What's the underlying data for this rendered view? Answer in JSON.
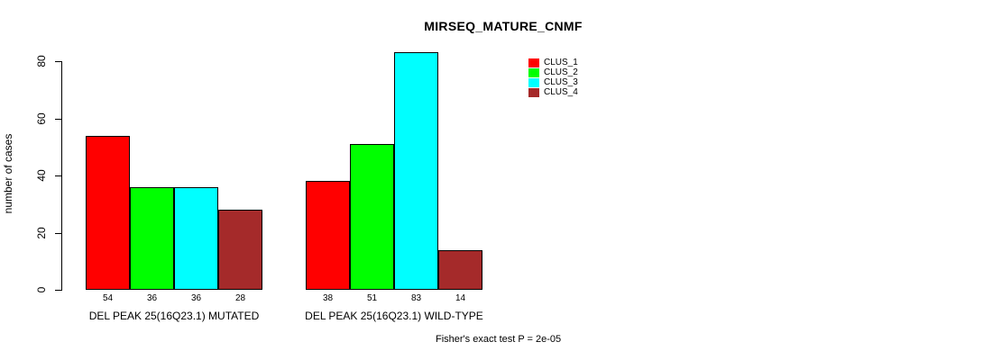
{
  "title": "MIRSEQ_MATURE_CNMF",
  "footer": "Fisher's exact test P = 2e-05",
  "chart_data": {
    "type": "bar",
    "title": "MIRSEQ_MATURE_CNMF",
    "xlabel": "",
    "ylabel": "number of cases",
    "yticks": [
      0,
      20,
      40,
      60,
      80
    ],
    "ylim": [
      0,
      83
    ],
    "grid": false,
    "legend_position": "top-right-inside",
    "categories": [
      "DEL PEAK 25(16Q23.1) MUTATED",
      "DEL PEAK 25(16Q23.1) WILD-TYPE"
    ],
    "series": [
      {
        "name": "CLUS_1",
        "color": "#FF0000",
        "values": [
          54,
          38
        ]
      },
      {
        "name": "CLUS_2",
        "color": "#00FF00",
        "values": [
          36,
          51
        ]
      },
      {
        "name": "CLUS_3",
        "color": "#00FFFF",
        "values": [
          36,
          83
        ]
      },
      {
        "name": "CLUS_4",
        "color": "#A52A2A",
        "values": [
          28,
          14
        ]
      }
    ],
    "bar_value_labels": {
      "DEL PEAK 25(16Q23.1) MUTATED": [
        54,
        36,
        36,
        28
      ],
      "DEL PEAK 25(16Q23.1) WILD-TYPE": [
        38,
        51,
        83,
        14
      ]
    },
    "annotation": "Fisher's exact test P = 2e-05"
  }
}
